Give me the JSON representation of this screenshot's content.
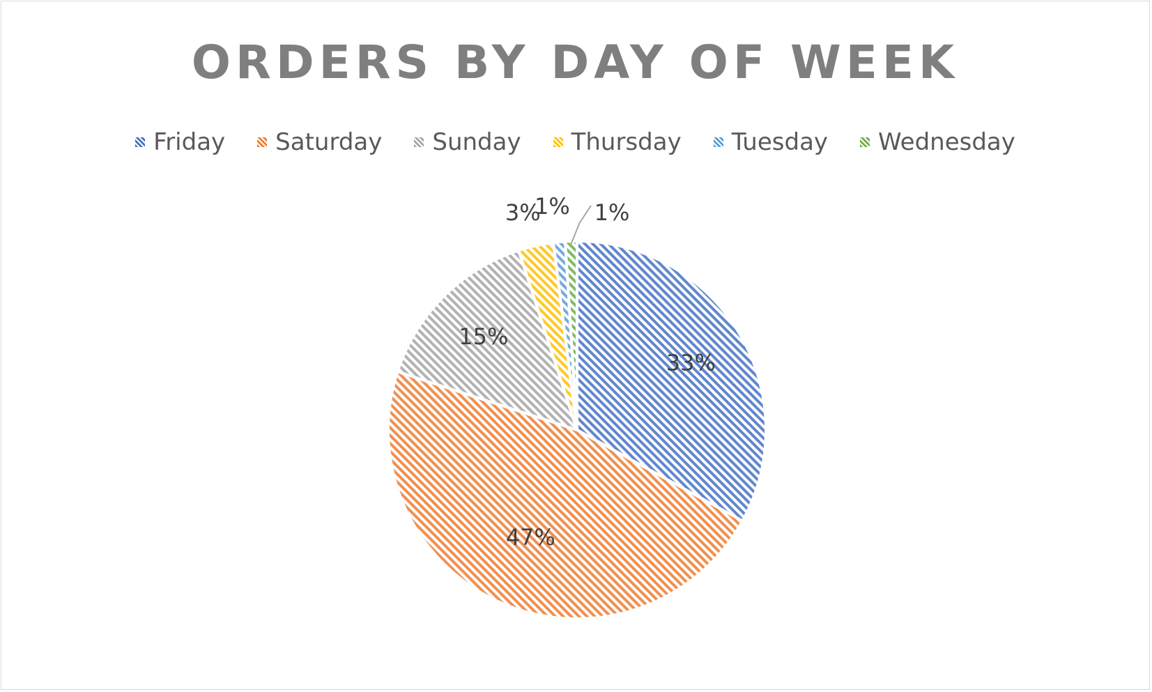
{
  "chart_data": {
    "type": "pie",
    "title": "ORDERS BY DAY OF WEEK",
    "legend_position": "top",
    "categories": [
      "Friday",
      "Saturday",
      "Sunday",
      "Thursday",
      "Tuesday",
      "Wednesday"
    ],
    "values": [
      33,
      47,
      15,
      3,
      1,
      1
    ],
    "labels": [
      "33%",
      "47%",
      "15%",
      "3%",
      "1%",
      "1%"
    ],
    "colors": [
      "#4472c4",
      "#ed7d31",
      "#a5a5a5",
      "#ffc000",
      "#5b9bd5",
      "#70ad47"
    ]
  }
}
